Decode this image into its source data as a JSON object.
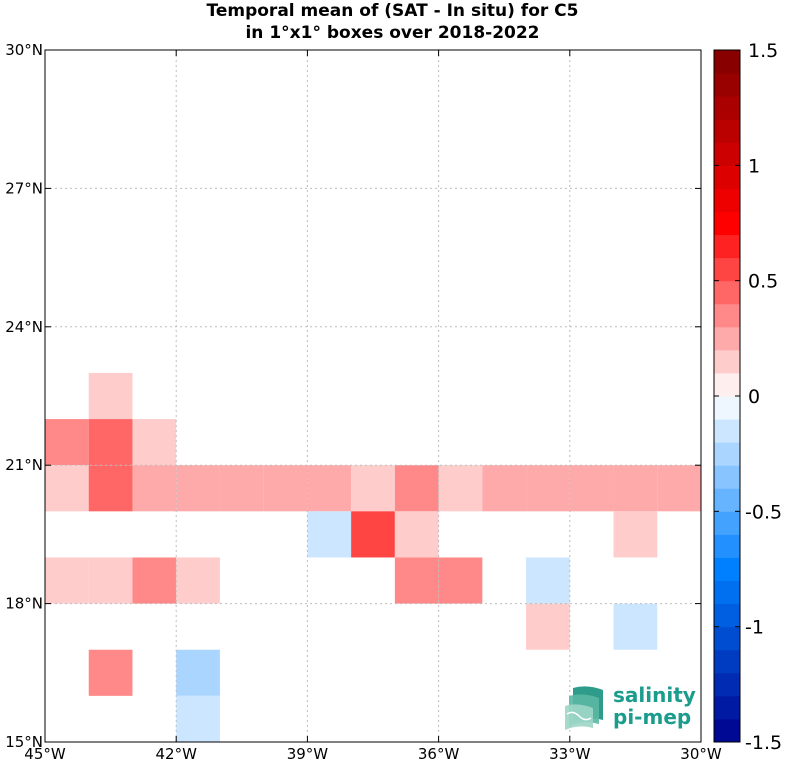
{
  "title_line1": "Temporal mean of (SAT - In situ) for C5",
  "title_line2": "in 1°x1° boxes over 2018-2022",
  "logo": {
    "line1": "salinity",
    "line2": "pi-mep",
    "icon": "salinity-waves-icon"
  },
  "chart_data": {
    "type": "heatmap",
    "title": "Temporal mean of (SAT - In situ) for C5 in 1°x1° boxes over 2018-2022",
    "x_ticks": [
      -45,
      -42,
      -39,
      -36,
      -33,
      -30
    ],
    "x_tick_labels": [
      "45°W",
      "42°W",
      "39°W",
      "36°W",
      "33°W",
      "30°W"
    ],
    "y_ticks": [
      15,
      18,
      21,
      24,
      27,
      30
    ],
    "y_tick_labels": [
      "15°N",
      "18°N",
      "21°N",
      "24°N",
      "27°N",
      "30°N"
    ],
    "xlim": [
      -45,
      -30
    ],
    "ylim": [
      15,
      30
    ],
    "grid": true,
    "cell_size_deg": 1,
    "colorbar": {
      "range": [
        -1.5,
        1.5
      ],
      "step": 0.1,
      "ticks": [
        -1.5,
        -1,
        -0.5,
        0,
        0.5,
        1,
        1.5
      ],
      "tick_labels": [
        "-1.5",
        "-1",
        "-0.5",
        "0",
        "0.5",
        "1",
        "1.5"
      ]
    },
    "cells": [
      {
        "lon": -44,
        "lat": 22,
        "value": 0.15
      },
      {
        "lon": -45,
        "lat": 21,
        "value": 0.35
      },
      {
        "lon": -44,
        "lat": 21,
        "value": 0.45
      },
      {
        "lon": -43,
        "lat": 21,
        "value": 0.15
      },
      {
        "lon": -45,
        "lat": 20,
        "value": 0.15
      },
      {
        "lon": -44,
        "lat": 20,
        "value": 0.45
      },
      {
        "lon": -43,
        "lat": 20,
        "value": 0.25
      },
      {
        "lon": -42,
        "lat": 20,
        "value": 0.25
      },
      {
        "lon": -41,
        "lat": 20,
        "value": 0.25
      },
      {
        "lon": -40,
        "lat": 20,
        "value": 0.25
      },
      {
        "lon": -39,
        "lat": 20,
        "value": 0.25
      },
      {
        "lon": -38,
        "lat": 20,
        "value": 0.15
      },
      {
        "lon": -37,
        "lat": 20,
        "value": 0.35
      },
      {
        "lon": -36,
        "lat": 20,
        "value": 0.15
      },
      {
        "lon": -35,
        "lat": 20,
        "value": 0.25
      },
      {
        "lon": -34,
        "lat": 20,
        "value": 0.25
      },
      {
        "lon": -33,
        "lat": 20,
        "value": 0.25
      },
      {
        "lon": -32,
        "lat": 20,
        "value": 0.25
      },
      {
        "lon": -31,
        "lat": 20,
        "value": 0.25
      },
      {
        "lon": -39,
        "lat": 19,
        "value": -0.15
      },
      {
        "lon": -38,
        "lat": 19,
        "value": 0.55
      },
      {
        "lon": -37,
        "lat": 19,
        "value": 0.15
      },
      {
        "lon": -32,
        "lat": 19,
        "value": 0.15
      },
      {
        "lon": -45,
        "lat": 18,
        "value": 0.15
      },
      {
        "lon": -44,
        "lat": 18,
        "value": 0.15
      },
      {
        "lon": -43,
        "lat": 18,
        "value": 0.35
      },
      {
        "lon": -42,
        "lat": 18,
        "value": 0.15
      },
      {
        "lon": -37,
        "lat": 18,
        "value": 0.35
      },
      {
        "lon": -36,
        "lat": 18,
        "value": 0.35
      },
      {
        "lon": -34,
        "lat": 18,
        "value": -0.15
      },
      {
        "lon": -34,
        "lat": 17,
        "value": 0.15
      },
      {
        "lon": -32,
        "lat": 17,
        "value": -0.15
      },
      {
        "lon": -44,
        "lat": 16,
        "value": 0.35
      },
      {
        "lon": -42,
        "lat": 16,
        "value": -0.25
      },
      {
        "lon": -42,
        "lat": 15,
        "value": -0.15
      }
    ]
  }
}
